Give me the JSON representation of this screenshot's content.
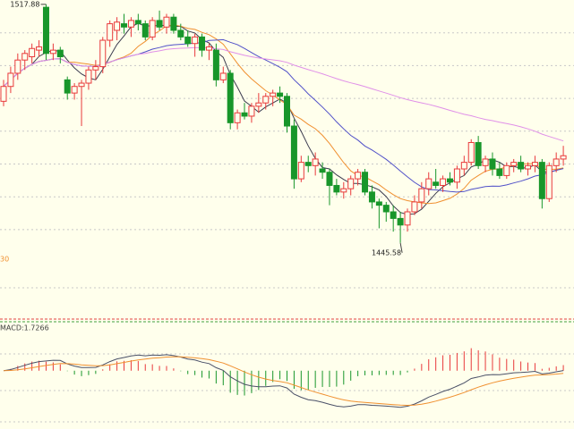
{
  "chart_data": {
    "type": "candlestick",
    "open": [
      1488.5,
      1493,
      1497,
      1501,
      1502,
      1504,
      1517,
      1503,
      1504,
      1495,
      1491,
      1493,
      1494,
      1498,
      1499,
      1507,
      1510,
      1512,
      1511,
      1513,
      1512,
      1508,
      1513,
      1511,
      1514,
      1510,
      1508,
      1506,
      1508,
      1504,
      1504,
      1495,
      1497,
      1482,
      1485,
      1484,
      1487,
      1488,
      1490,
      1491,
      1490,
      1481,
      1465,
      1470,
      1469,
      1468,
      1467,
      1463,
      1461,
      1462,
      1465,
      1467,
      1461,
      1458,
      1457,
      1455,
      1453,
      1451,
      1455,
      1458,
      1462,
      1464,
      1463,
      1465,
      1464,
      1468,
      1470,
      1476,
      1469,
      1471,
      1468,
      1466,
      1469,
      1470,
      1468,
      1469,
      1470,
      1459,
      1469,
      1471
    ],
    "high": [
      1495,
      1499,
      1503,
      1504,
      1506,
      1507,
      1517.88,
      1506,
      1505,
      1496,
      1494,
      1495,
      1499,
      1501,
      1508,
      1513,
      1514,
      1515,
      1514,
      1515,
      1513,
      1514,
      1516,
      1515,
      1515,
      1512,
      1510,
      1509,
      1509,
      1506,
      1506,
      1499,
      1498,
      1486,
      1488,
      1488,
      1491,
      1491,
      1492,
      1493,
      1491,
      1483,
      1472,
      1472,
      1473,
      1470,
      1468,
      1465,
      1464,
      1466,
      1468,
      1468,
      1463,
      1459,
      1458,
      1457,
      1455,
      1456,
      1460,
      1464,
      1467,
      1468,
      1466,
      1467,
      1469,
      1472,
      1477,
      1478,
      1472,
      1473,
      1470,
      1470,
      1471,
      1472,
      1470,
      1472,
      1471,
      1470,
      1473,
      1475
    ],
    "low": [
      1487,
      1491,
      1495,
      1498,
      1500,
      1502,
      1501,
      1501,
      1500,
      1489,
      1489,
      1481,
      1492,
      1495,
      1497,
      1505,
      1507,
      1509,
      1508,
      1510,
      1507,
      1507,
      1510,
      1509,
      1509,
      1507,
      1505,
      1502,
      1502,
      1501,
      1493,
      1494,
      1480,
      1480,
      1483,
      1482,
      1485,
      1486,
      1487,
      1488,
      1479,
      1462,
      1464,
      1467,
      1466,
      1465,
      1457,
      1460,
      1459,
      1460,
      1463,
      1460,
      1456,
      1450,
      1452,
      1449,
      1445.58,
      1449,
      1454,
      1456,
      1460,
      1462,
      1461,
      1463,
      1462,
      1466,
      1469,
      1468,
      1467,
      1466,
      1465,
      1465,
      1467,
      1467,
      1466,
      1467,
      1456,
      1458,
      1467,
      1469
    ],
    "close": [
      1493,
      1497,
      1501,
      1503,
      1504.5,
      1505,
      1503,
      1504,
      1502,
      1491,
      1493,
      1494,
      1498,
      1499,
      1507,
      1512,
      1512.5,
      1511,
      1513,
      1512,
      1508,
      1513,
      1511,
      1514,
      1510,
      1508,
      1506,
      1508,
      1504,
      1505,
      1495,
      1497,
      1482,
      1485,
      1484,
      1487,
      1488,
      1490,
      1491,
      1490,
      1481,
      1465,
      1470,
      1469,
      1471,
      1467,
      1463,
      1461,
      1462,
      1465,
      1467,
      1461,
      1458,
      1457,
      1455,
      1453,
      1451,
      1455,
      1458,
      1462,
      1465,
      1463,
      1465,
      1464,
      1468,
      1470,
      1476,
      1469,
      1471,
      1468,
      1466,
      1469,
      1470,
      1468,
      1469,
      1470,
      1459,
      1469,
      1471,
      1472
    ],
    "ylim": [
      1442,
      1519.2
    ],
    "up_color": "#e8393b",
    "down_color": "#18962a",
    "ma_periods": [
      5,
      10,
      20,
      60
    ],
    "ma_colors": [
      "#3c3c50",
      "#f09030",
      "#5050c8",
      "#e090e8"
    ],
    "volume_label": "30",
    "macd": {
      "label": "MACD:1.7266",
      "params": [
        12,
        26,
        9
      ],
      "ylim": [
        -16,
        10
      ],
      "dif_color": "#4a5068",
      "dea_color": "#f09030"
    }
  }
}
